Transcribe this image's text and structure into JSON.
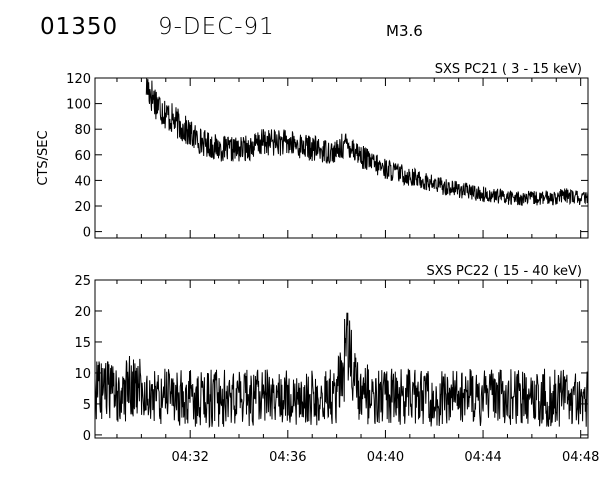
{
  "header": {
    "event_id": "01350",
    "date": "9-DEC-91",
    "goes_class": "M3.6"
  },
  "chart_data": [
    {
      "type": "line",
      "title": "SXS PC21  (  3 - 15 keV)",
      "ylabel": "CTS/SEC",
      "xlabel": "",
      "ylim": [
        -5,
        120
      ],
      "yticks": [
        0,
        20,
        40,
        60,
        80,
        100,
        120
      ],
      "x_range_min": [
        28.1,
        48.3
      ],
      "x_tick_labels": [
        "",
        "",
        "",
        "",
        ""
      ],
      "x": [
        30.2,
        30.5,
        31.0,
        31.5,
        32.0,
        32.5,
        33.0,
        33.5,
        34.0,
        34.5,
        35.0,
        35.5,
        36.0,
        36.5,
        37.0,
        37.5,
        38.0,
        38.3,
        38.6,
        39.0,
        39.5,
        40.0,
        40.5,
        41.0,
        41.5,
        42.0,
        42.5,
        43.0,
        43.5,
        44.0,
        44.5,
        45.0,
        45.5,
        46.0,
        46.5,
        47.0,
        47.5,
        48.0,
        48.3
      ],
      "series": [
        {
          "values": [
            115,
            104,
            92,
            84,
            76,
            70,
            66,
            64,
            64,
            66,
            70,
            70,
            69,
            67,
            65,
            63,
            62,
            68,
            67,
            59,
            53,
            49,
            46,
            43,
            40,
            37,
            35,
            33,
            31,
            29,
            28,
            27,
            26,
            26,
            26,
            27,
            28,
            26,
            26
          ]
        }
      ]
    },
    {
      "type": "line",
      "title": "SXS PC22  ( 15 - 40 keV)",
      "ylabel": "",
      "xlabel": "",
      "ylim": [
        -0.5,
        25
      ],
      "yticks": [
        0,
        5,
        10,
        15,
        20,
        25
      ],
      "x_range_min": [
        28.1,
        48.3
      ],
      "x_ticks_min": [
        32,
        36,
        40,
        44,
        48
      ],
      "x_tick_labels": [
        "04:32",
        "04:36",
        "04:40",
        "04:44",
        "04:48"
      ],
      "x": [
        28.1,
        28.5,
        29.0,
        29.5,
        30.0,
        30.5,
        31.0,
        32.0,
        33.0,
        34.0,
        35.0,
        36.0,
        37.0,
        37.5,
        38.0,
        38.3,
        38.5,
        38.7,
        39.0,
        39.5,
        40.0,
        41.0,
        42.0,
        43.0,
        44.0,
        45.0,
        46.0,
        47.0,
        48.0,
        48.3
      ],
      "series": [
        {
          "values": [
            8,
            7,
            6,
            8,
            7,
            6,
            6,
            6,
            6,
            6,
            6,
            6,
            6,
            6,
            7,
            12,
            13,
            10,
            7,
            6,
            6,
            6,
            6,
            6,
            6,
            6,
            6,
            6,
            6,
            6
          ]
        }
      ]
    }
  ]
}
